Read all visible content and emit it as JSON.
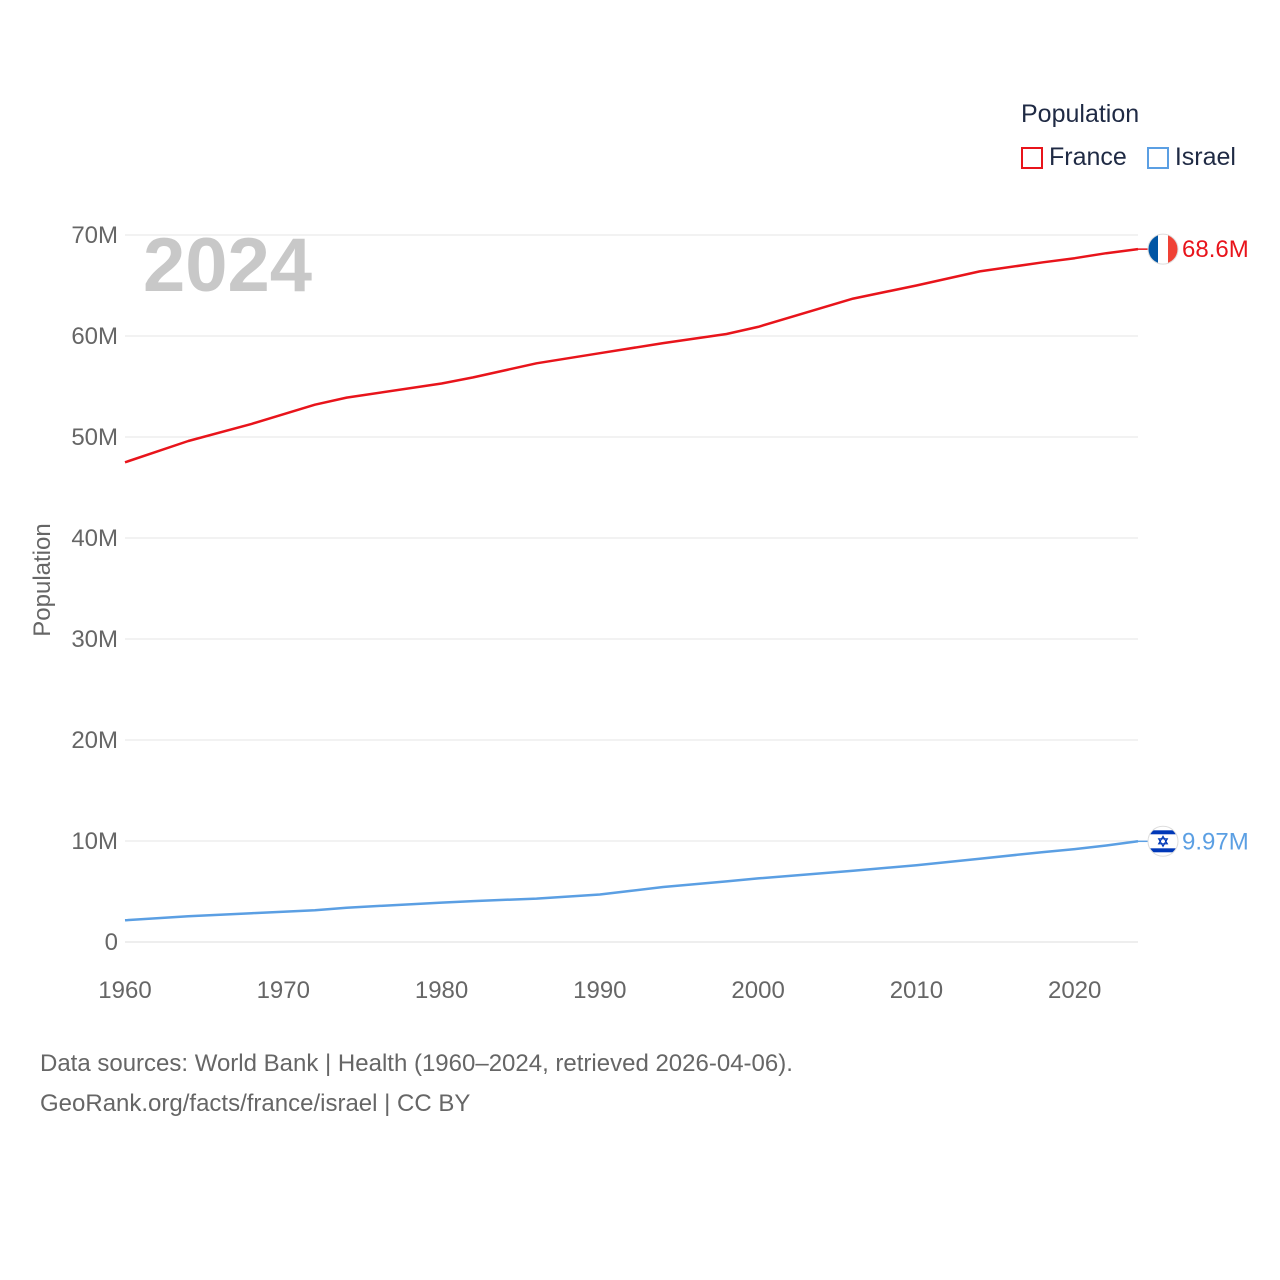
{
  "legend": {
    "title": "Population",
    "items": [
      {
        "name": "France",
        "color": "#e8141b"
      },
      {
        "name": "Israel",
        "color": "#5b9fe3"
      }
    ]
  },
  "year_overlay": "2024",
  "source": {
    "line1": "Data sources: World Bank | Health (1960–2024, retrieved 2026-04-06).",
    "line2": "GeoRank.org/facts/france/israel | CC BY"
  },
  "chart_data": {
    "type": "line",
    "title": "",
    "xlabel": "",
    "ylabel": "Population",
    "xlim": [
      1960,
      2024
    ],
    "ylim": [
      0,
      70000000
    ],
    "x_ticks": [
      1960,
      1970,
      1980,
      1990,
      2000,
      2010,
      2020
    ],
    "x_tick_labels": [
      "1960",
      "1970",
      "1980",
      "1990",
      "2000",
      "2010",
      "2020"
    ],
    "y_ticks": [
      0,
      10000000,
      20000000,
      30000000,
      40000000,
      50000000,
      60000000,
      70000000
    ],
    "y_tick_labels": [
      "0",
      "10M",
      "20M",
      "30M",
      "40M",
      "50M",
      "60M",
      "70M"
    ],
    "x": [
      1960,
      1964,
      1968,
      1972,
      1974,
      1980,
      1982,
      1986,
      1990,
      1994,
      1998,
      2000,
      2006,
      2010,
      2014,
      2018,
      2020,
      2022,
      2024
    ],
    "series": [
      {
        "name": "France",
        "color": "#e8141b",
        "end_label": "68.6M",
        "flag": "france-flag",
        "values": [
          47500000,
          49600000,
          51300000,
          53200000,
          53900000,
          55300000,
          55900000,
          57300000,
          58300000,
          59300000,
          60200000,
          60900000,
          63700000,
          65000000,
          66400000,
          67300000,
          67700000,
          68200000,
          68600000
        ]
      },
      {
        "name": "Israel",
        "color": "#5b9fe3",
        "end_label": "9.97M",
        "flag": "israel-flag",
        "values": [
          2150000,
          2550000,
          2850000,
          3150000,
          3400000,
          3900000,
          4050000,
          4300000,
          4700000,
          5450000,
          6000000,
          6300000,
          7050000,
          7600000,
          8250000,
          8900000,
          9200000,
          9550000,
          9970000
        ]
      }
    ]
  }
}
